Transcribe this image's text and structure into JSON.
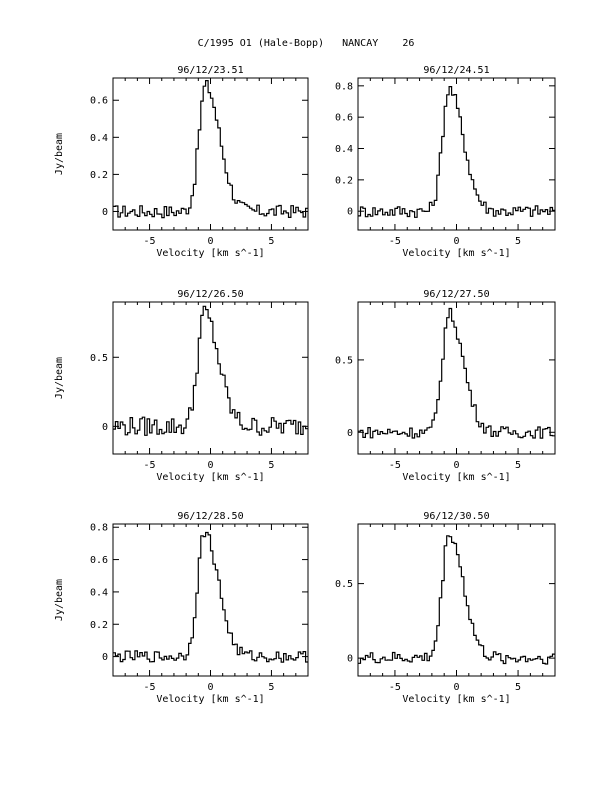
{
  "figure": {
    "title": "C/1995 O1 (Hale-Bopp)   NANCAY    26"
  },
  "chart_data": [
    {
      "type": "line",
      "title": "96/12/23.51",
      "xlabel": "Velocity [km s^-1]",
      "ylabel": "Jy/beam",
      "xlim": [
        -8,
        8
      ],
      "ylim": [
        -0.1,
        0.72
      ],
      "xticks": [
        -5,
        0,
        5
      ],
      "yticks": [
        0,
        0.2,
        0.4,
        0.6
      ],
      "peak": 0.68,
      "peak_x": -0.4,
      "noise": 0.035
    },
    {
      "type": "line",
      "title": "96/12/24.51",
      "xlabel": "Velocity [km s^-1]",
      "ylabel": "",
      "xlim": [
        -8,
        8
      ],
      "ylim": [
        -0.12,
        0.85
      ],
      "xticks": [
        -5,
        0,
        5
      ],
      "yticks": [
        0,
        0.2,
        0.4,
        0.6,
        0.8
      ],
      "peak": 0.78,
      "peak_x": -0.6,
      "noise": 0.04
    },
    {
      "type": "line",
      "title": "96/12/26.50",
      "xlabel": "Velocity [km s^-1]",
      "ylabel": "Jy/beam",
      "xlim": [
        -8,
        8
      ],
      "ylim": [
        -0.2,
        0.9
      ],
      "xticks": [
        -5,
        0,
        5
      ],
      "yticks": [
        0,
        0.5
      ],
      "peak": 0.82,
      "peak_x": -0.5,
      "noise": 0.07
    },
    {
      "type": "line",
      "title": "96/12/27.50",
      "xlabel": "Velocity [km s^-1]",
      "ylabel": "",
      "xlim": [
        -8,
        8
      ],
      "ylim": [
        -0.15,
        0.9
      ],
      "xticks": [
        -5,
        0,
        5
      ],
      "yticks": [
        0,
        0.5
      ],
      "peak": 0.82,
      "peak_x": -0.6,
      "noise": 0.04
    },
    {
      "type": "line",
      "title": "96/12/28.50",
      "xlabel": "Velocity [km s^-1]",
      "ylabel": "Jy/beam",
      "xlim": [
        -8,
        8
      ],
      "ylim": [
        -0.12,
        0.82
      ],
      "xticks": [
        -5,
        0,
        5
      ],
      "yticks": [
        0,
        0.2,
        0.4,
        0.6,
        0.8
      ],
      "peak": 0.77,
      "peak_x": -0.5,
      "noise": 0.035
    },
    {
      "type": "line",
      "title": "96/12/30.50",
      "xlabel": "Velocity [km s^-1]",
      "ylabel": "",
      "xlim": [
        -8,
        8
      ],
      "ylim": [
        -0.12,
        0.9
      ],
      "xticks": [
        -5,
        0,
        5
      ],
      "yticks": [
        0,
        0.5
      ],
      "peak": 0.84,
      "peak_x": -0.6,
      "noise": 0.04
    }
  ]
}
